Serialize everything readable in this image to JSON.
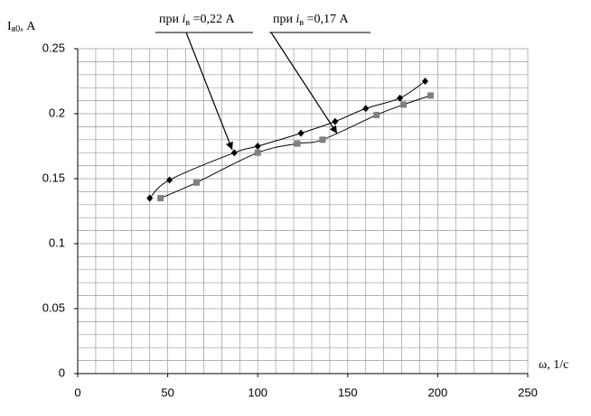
{
  "chart_data": {
    "type": "line",
    "y_label": {
      "main": "I",
      "sub": "я0",
      "rest": ", А"
    },
    "x_label": "ω, 1/с",
    "annotations": [
      {
        "prefix": "при ",
        "var": "i",
        "sub": "в",
        "suffix": " =0,22 А"
      },
      {
        "prefix": "при ",
        "var": "i",
        "sub": "в",
        "suffix": " =0,17 А"
      }
    ],
    "series": [
      {
        "color": "#000000",
        "marker": "diamond",
        "x": [
          40,
          51,
          87,
          100,
          124,
          143,
          160,
          179,
          193
        ],
        "values": [
          0.135,
          0.149,
          0.17,
          0.175,
          0.185,
          0.194,
          0.204,
          0.212,
          0.225
        ]
      },
      {
        "color": "#808080",
        "marker": "square",
        "x": [
          46,
          66,
          100,
          122,
          136,
          166,
          181,
          196
        ],
        "values": [
          0.135,
          0.147,
          0.17,
          0.177,
          0.18,
          0.199,
          0.207,
          0.214
        ]
      }
    ],
    "xlim": [
      0,
      250
    ],
    "xticks": [
      0,
      50,
      100,
      150,
      200,
      250
    ],
    "ylim": [
      0,
      0.25
    ],
    "yticks": [
      0,
      0.05,
      0.1,
      0.15,
      0.2,
      0.25
    ],
    "x_minor_ticks": [
      0,
      10,
      20,
      30,
      40,
      50,
      60,
      70,
      80,
      90,
      100,
      110,
      120,
      130,
      140,
      150,
      160,
      170,
      180,
      190,
      200,
      210,
      220,
      230,
      240,
      250
    ],
    "y_minor_ticks": [
      0,
      0.01,
      0.02,
      0.03,
      0.04,
      0.05,
      0.06,
      0.07,
      0.08,
      0.09,
      0.1,
      0.11,
      0.12,
      0.13,
      0.14,
      0.15,
      0.16,
      0.17,
      0.18,
      0.19,
      0.2,
      0.21,
      0.22,
      0.23,
      0.24,
      0.25
    ],
    "grid": true
  }
}
